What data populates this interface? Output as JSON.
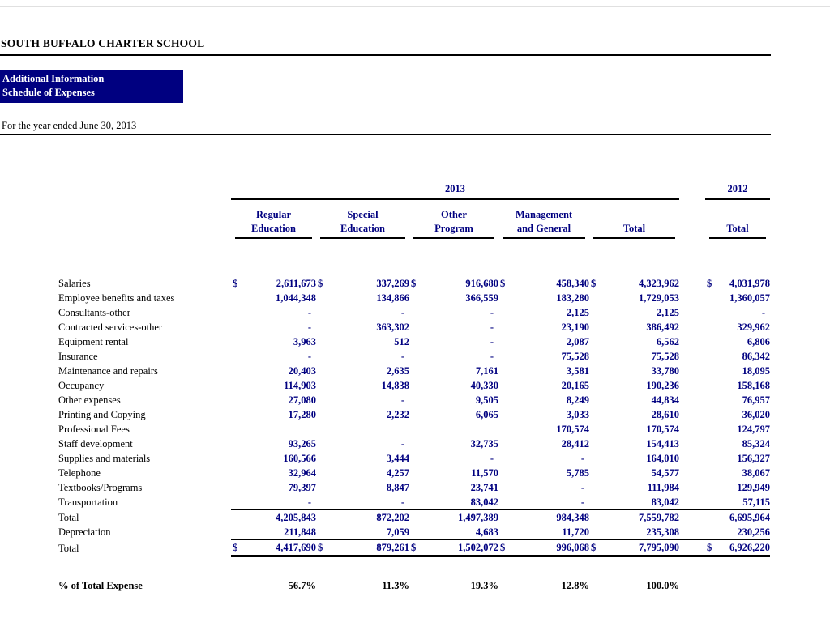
{
  "colors": {
    "accent_navy": "#000080",
    "banner_bg": "#000080",
    "banner_text": "#ffffff"
  },
  "header": {
    "school_name": "SOUTH BUFFALO CHARTER SCHOOL",
    "banner": {
      "line1": "Additional Information",
      "line2": "Schedule of Expenses"
    },
    "period": "For the year ended June 30, 2013"
  },
  "table": {
    "year_groups": [
      "2013",
      "2012"
    ],
    "columns": [
      {
        "line1": "Regular",
        "line2": "Education"
      },
      {
        "line1": "Special",
        "line2": "Education"
      },
      {
        "line1": "Other",
        "line2": "Program"
      },
      {
        "line1": "Management",
        "line2": "and General"
      },
      {
        "line1": "",
        "line2": "Total"
      },
      {
        "line1": "",
        "line2": "Total"
      }
    ],
    "rows": [
      {
        "label": "Salaries",
        "dollar": true,
        "style": "data",
        "values": [
          "2,611,673",
          "337,269",
          "916,680",
          "458,340",
          "4,323,962",
          "4,031,978"
        ]
      },
      {
        "label": "Employee benefits and taxes",
        "dollar": false,
        "style": "data",
        "values": [
          "1,044,348",
          "134,866",
          "366,559",
          "183,280",
          "1,729,053",
          "1,360,057"
        ]
      },
      {
        "label": "Consultants-other",
        "dollar": false,
        "style": "data",
        "values": [
          "-",
          "-",
          "-",
          "2,125",
          "2,125",
          "-"
        ]
      },
      {
        "label": "Contracted services-other",
        "dollar": false,
        "style": "data",
        "values": [
          "-",
          "363,302",
          "-",
          "23,190",
          "386,492",
          "329,962"
        ]
      },
      {
        "label": "Equipment rental",
        "dollar": false,
        "style": "data",
        "values": [
          "3,963",
          "512",
          "-",
          "2,087",
          "6,562",
          "6,806"
        ]
      },
      {
        "label": "Insurance",
        "dollar": false,
        "style": "data",
        "values": [
          "-",
          "-",
          "-",
          "75,528",
          "75,528",
          "86,342"
        ]
      },
      {
        "label": "Maintenance and repairs",
        "dollar": false,
        "style": "data",
        "values": [
          "20,403",
          "2,635",
          "7,161",
          "3,581",
          "33,780",
          "18,095"
        ]
      },
      {
        "label": "Occupancy",
        "dollar": false,
        "style": "data",
        "values": [
          "114,903",
          "14,838",
          "40,330",
          "20,165",
          "190,236",
          "158,168"
        ]
      },
      {
        "label": "Other expenses",
        "dollar": false,
        "style": "data",
        "values": [
          "27,080",
          "-",
          "9,505",
          "8,249",
          "44,834",
          "76,957"
        ]
      },
      {
        "label": "Printing and Copying",
        "dollar": false,
        "style": "data",
        "values": [
          "17,280",
          "2,232",
          "6,065",
          "3,033",
          "28,610",
          "36,020"
        ]
      },
      {
        "label": "Professional Fees",
        "dollar": false,
        "style": "data",
        "values": [
          "",
          "",
          "",
          "170,574",
          "170,574",
          "124,797"
        ]
      },
      {
        "label": "Staff development",
        "dollar": false,
        "style": "data",
        "values": [
          "93,265",
          "-",
          "32,735",
          "28,412",
          "154,413",
          "85,324"
        ]
      },
      {
        "label": "Supplies and materials",
        "dollar": false,
        "style": "data",
        "values": [
          "160,566",
          "3,444",
          "-",
          "-",
          "164,010",
          "156,327"
        ]
      },
      {
        "label": "Telephone",
        "dollar": false,
        "style": "data",
        "values": [
          "32,964",
          "4,257",
          "11,570",
          "5,785",
          "54,577",
          "38,067"
        ]
      },
      {
        "label": "Textbooks/Programs",
        "dollar": false,
        "style": "data",
        "values": [
          "79,397",
          "8,847",
          "23,741",
          "-",
          "111,984",
          "129,949"
        ]
      },
      {
        "label": "Transportation",
        "dollar": false,
        "style": "data",
        "values": [
          "-",
          "-",
          "83,042",
          "-",
          "83,042",
          "57,115"
        ]
      },
      {
        "label": "Total",
        "dollar": false,
        "style": "subtotal",
        "values": [
          "4,205,843",
          "872,202",
          "1,497,389",
          "984,348",
          "7,559,782",
          "6,695,964"
        ]
      },
      {
        "label": "Depreciation",
        "dollar": false,
        "style": "data",
        "values": [
          "211,848",
          "7,059",
          "4,683",
          "11,720",
          "235,308",
          "230,256"
        ]
      },
      {
        "label": "Total",
        "dollar": true,
        "style": "grandtotal",
        "values": [
          "4,417,690",
          "879,261",
          "1,502,072",
          "996,068",
          "7,795,090",
          "6,926,220"
        ]
      },
      {
        "label": "% of Total Expense",
        "dollar": false,
        "style": "percent",
        "values": [
          "56.7%",
          "11.3%",
          "19.3%",
          "12.8%",
          "100.0%",
          ""
        ]
      }
    ]
  }
}
